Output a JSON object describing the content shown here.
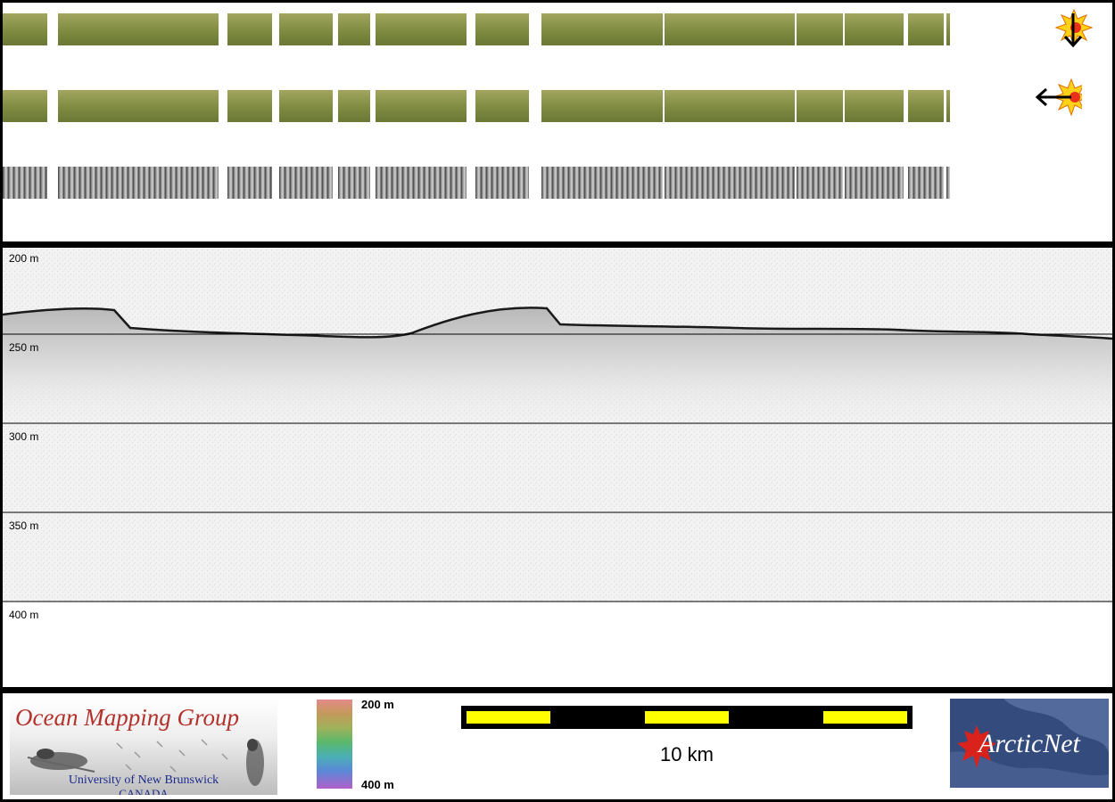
{
  "profile": {
    "depth_labels": [
      "200 m",
      "250 m",
      "300 m",
      "350 m",
      "400 m"
    ]
  },
  "colorbar": {
    "top_label": "200 m",
    "bottom_label": "400 m"
  },
  "scale_bar": {
    "label": "10 km"
  },
  "logos": {
    "omg_title": "Ocean Mapping Group",
    "omg_university": "University of New Brunswick",
    "omg_country": "CANADA",
    "arcticnet_text": "ArcticNet"
  },
  "icons": {
    "sun_north": "sun-illumination-from-north-icon",
    "sun_west": "sun-illumination-from-west-icon"
  },
  "colors": {
    "swath_olive": "#8a8f3c",
    "scale_yellow": "#ffff00",
    "omg_red": "#b3322b",
    "omg_blue": "#1b2a8a",
    "arcticnet_navy": "#344b7e"
  }
}
